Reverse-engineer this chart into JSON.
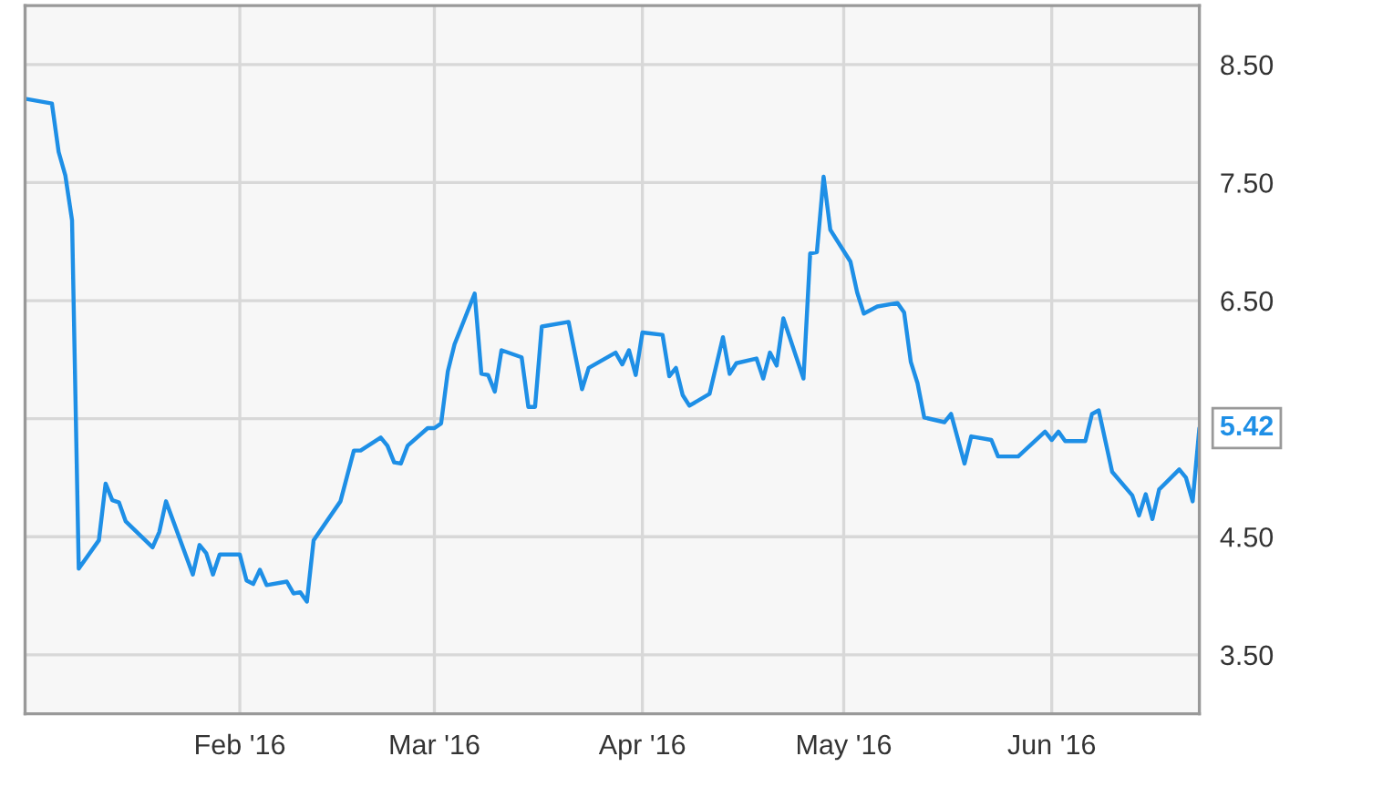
{
  "chart_data": {
    "type": "line",
    "x": [
      "2015-12-31",
      "2016-01-04",
      "2016-01-05",
      "2016-01-06",
      "2016-01-07",
      "2016-01-08",
      "2016-01-11",
      "2016-01-12",
      "2016-01-13",
      "2016-01-14",
      "2016-01-15",
      "2016-01-19",
      "2016-01-20",
      "2016-01-21",
      "2016-01-25",
      "2016-01-26",
      "2016-01-27",
      "2016-01-28",
      "2016-01-29",
      "2016-02-01",
      "2016-02-02",
      "2016-02-03",
      "2016-02-04",
      "2016-02-05",
      "2016-02-08",
      "2016-02-09",
      "2016-02-10",
      "2016-02-11",
      "2016-02-12",
      "2016-02-16",
      "2016-02-18",
      "2016-02-19",
      "2016-02-22",
      "2016-02-23",
      "2016-02-24",
      "2016-02-25",
      "2016-02-26",
      "2016-02-29",
      "2016-03-01",
      "2016-03-02",
      "2016-03-03",
      "2016-03-04",
      "2016-03-07",
      "2016-03-08",
      "2016-03-09",
      "2016-03-10",
      "2016-03-11",
      "2016-03-14",
      "2016-03-15",
      "2016-03-16",
      "2016-03-17",
      "2016-03-21",
      "2016-03-23",
      "2016-03-24",
      "2016-03-28",
      "2016-03-29",
      "2016-03-30",
      "2016-03-31",
      "2016-04-01",
      "2016-04-04",
      "2016-04-05",
      "2016-04-06",
      "2016-04-07",
      "2016-04-08",
      "2016-04-11",
      "2016-04-13",
      "2016-04-14",
      "2016-04-15",
      "2016-04-18",
      "2016-04-19",
      "2016-04-20",
      "2016-04-21",
      "2016-04-22",
      "2016-04-25",
      "2016-04-26",
      "2016-04-27",
      "2016-04-28",
      "2016-04-29",
      "2016-05-02",
      "2016-05-03",
      "2016-05-04",
      "2016-05-06",
      "2016-05-09",
      "2016-05-10",
      "2016-05-11",
      "2016-05-12",
      "2016-05-13",
      "2016-05-16",
      "2016-05-17",
      "2016-05-19",
      "2016-05-20",
      "2016-05-23",
      "2016-05-24",
      "2016-05-27",
      "2016-05-31",
      "2016-06-01",
      "2016-06-02",
      "2016-06-03",
      "2016-06-06",
      "2016-06-07",
      "2016-06-08",
      "2016-06-10",
      "2016-06-13",
      "2016-06-14",
      "2016-06-15",
      "2016-06-16",
      "2016-06-17",
      "2016-06-20",
      "2016-06-21",
      "2016-06-22",
      "2016-06-23"
    ],
    "series": [
      {
        "color": "#1e8fe6",
        "values": [
          8.21,
          8.17,
          7.76,
          7.56,
          7.18,
          4.23,
          4.47,
          4.95,
          4.81,
          4.79,
          4.63,
          4.41,
          4.54,
          4.8,
          4.18,
          4.43,
          4.36,
          4.18,
          4.35,
          4.35,
          4.13,
          4.1,
          4.22,
          4.09,
          4.12,
          4.02,
          4.03,
          3.95,
          4.47,
          4.8,
          5.23,
          5.23,
          5.34,
          5.27,
          5.13,
          5.12,
          5.27,
          5.42,
          5.42,
          5.46,
          5.9,
          6.13,
          6.56,
          5.88,
          5.87,
          5.73,
          6.08,
          6.02,
          5.6,
          5.6,
          6.28,
          6.32,
          5.75,
          5.93,
          6.06,
          5.96,
          6.08,
          5.87,
          6.23,
          6.21,
          5.86,
          5.93,
          5.7,
          5.61,
          5.71,
          6.19,
          5.88,
          5.97,
          6.01,
          5.84,
          6.06,
          5.95,
          6.35,
          5.84,
          6.9,
          6.91,
          7.55,
          7.1,
          6.83,
          6.57,
          6.39,
          6.45,
          6.48,
          6.4,
          5.98,
          5.8,
          5.51,
          5.47,
          5.54,
          5.12,
          5.35,
          5.32,
          5.18,
          5.18,
          5.39,
          5.32,
          5.39,
          5.31,
          5.31,
          5.54,
          5.57,
          5.05,
          4.85,
          4.68,
          4.86,
          4.65,
          4.9,
          5.07,
          5.0,
          4.8,
          5.42
        ]
      }
    ],
    "xlim": [
      "2015-12-31",
      "2016-06-23"
    ],
    "xticks": [
      {
        "value": "2016-02-01",
        "label": "Feb '16"
      },
      {
        "value": "2016-03-01",
        "label": "Mar '16"
      },
      {
        "value": "2016-04-01",
        "label": "Apr '16"
      },
      {
        "value": "2016-05-01",
        "label": "May '16"
      },
      {
        "value": "2016-06-01",
        "label": "Jun '16"
      }
    ],
    "ylim": [
      3.0,
      9.0
    ],
    "yticks": [
      {
        "value": 3.5,
        "label": "3.50"
      },
      {
        "value": 4.5,
        "label": "4.50"
      },
      {
        "value": 5.5,
        "label": null
      },
      {
        "value": 6.5,
        "label": "6.50"
      },
      {
        "value": 7.5,
        "label": "7.50"
      },
      {
        "value": 8.5,
        "label": "8.50"
      }
    ],
    "grid": true,
    "annotations": [
      {
        "text": "5.42",
        "x": "2016-06-23",
        "y": 5.42
      }
    ]
  }
}
